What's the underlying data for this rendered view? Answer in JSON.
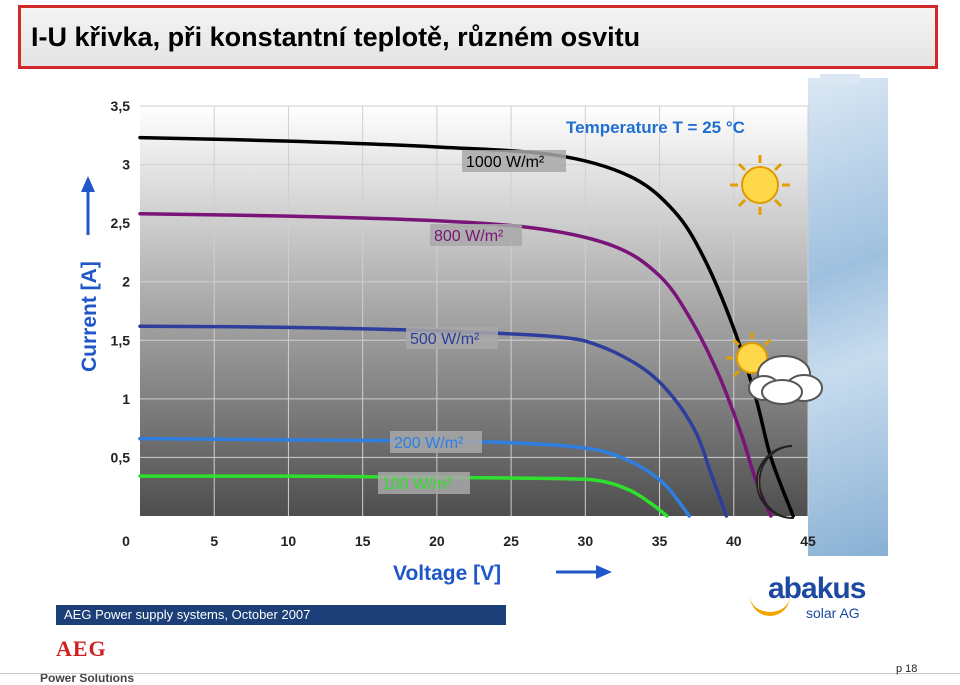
{
  "title": "I-U křivka, při konstantní teplotě, různém osvitu",
  "chart_data": {
    "type": "line",
    "xlabel": "Voltage [V]",
    "ylabel": "Current [A]",
    "xlim": [
      0,
      45
    ],
    "ylim": [
      0,
      3.5
    ],
    "x_ticks": [
      0,
      5,
      10,
      15,
      20,
      25,
      30,
      35,
      40,
      45
    ],
    "y_ticks": [
      0,
      0.5,
      1,
      1.5,
      2,
      2.5,
      3,
      3.5
    ],
    "x_tick_labels": [
      "0",
      "5",
      "10",
      "15",
      "20",
      "25",
      "30",
      "35",
      "40",
      "45"
    ],
    "y_tick_labels": [
      "0",
      "0,5",
      "1",
      "1,5",
      "2",
      "2,5",
      "3",
      "3,5"
    ],
    "annotation": "Temperature T = 25 °C",
    "grid": true,
    "series": [
      {
        "name": "1000 W/m²",
        "color": "#000000",
        "points": [
          [
            0,
            3.23
          ],
          [
            10,
            3.2
          ],
          [
            20,
            3.15
          ],
          [
            28,
            3.08
          ],
          [
            33,
            2.9
          ],
          [
            36,
            2.6
          ],
          [
            38,
            2.2
          ],
          [
            40,
            1.6
          ],
          [
            41.5,
            1.0
          ],
          [
            42.5,
            0.5
          ],
          [
            44,
            0
          ]
        ]
      },
      {
        "name": "800 W/m²",
        "color": "#7a1478",
        "points": [
          [
            0,
            2.58
          ],
          [
            10,
            2.56
          ],
          [
            20,
            2.52
          ],
          [
            27,
            2.45
          ],
          [
            32,
            2.3
          ],
          [
            35,
            2.05
          ],
          [
            37,
            1.7
          ],
          [
            39,
            1.2
          ],
          [
            40.5,
            0.7
          ],
          [
            41.5,
            0.3
          ],
          [
            42.5,
            0
          ]
        ]
      },
      {
        "name": "500 W/m²",
        "color": "#2e3e9c",
        "points": [
          [
            0,
            1.62
          ],
          [
            10,
            1.61
          ],
          [
            20,
            1.58
          ],
          [
            28,
            1.53
          ],
          [
            31,
            1.45
          ],
          [
            34,
            1.25
          ],
          [
            36,
            1.0
          ],
          [
            37.5,
            0.7
          ],
          [
            38.5,
            0.35
          ],
          [
            39.5,
            0
          ]
        ]
      },
      {
        "name": "200 W/m²",
        "color": "#2f7fe0",
        "points": [
          [
            0,
            0.66
          ],
          [
            10,
            0.65
          ],
          [
            20,
            0.64
          ],
          [
            26,
            0.62
          ],
          [
            30,
            0.58
          ],
          [
            32,
            0.52
          ],
          [
            34,
            0.4
          ],
          [
            35.5,
            0.25
          ],
          [
            37,
            0
          ]
        ]
      },
      {
        "name": "100 W/m²",
        "color": "#2ee02e",
        "points": [
          [
            0,
            0.34
          ],
          [
            10,
            0.34
          ],
          [
            20,
            0.33
          ],
          [
            28,
            0.32
          ],
          [
            31,
            0.3
          ],
          [
            33,
            0.22
          ],
          [
            34.5,
            0.1
          ],
          [
            35.5,
            0
          ]
        ]
      }
    ]
  },
  "footer": {
    "bar_text": "AEG Power supply systems,  October 2007",
    "logo_text": "AEG",
    "logo_sub": "Power Solutions",
    "partner_logo": "abakus",
    "partner_sub": "solar AG",
    "page": "p 18"
  },
  "icons": [
    "sun-icon",
    "sun-cloud-icon",
    "moon-icon"
  ]
}
